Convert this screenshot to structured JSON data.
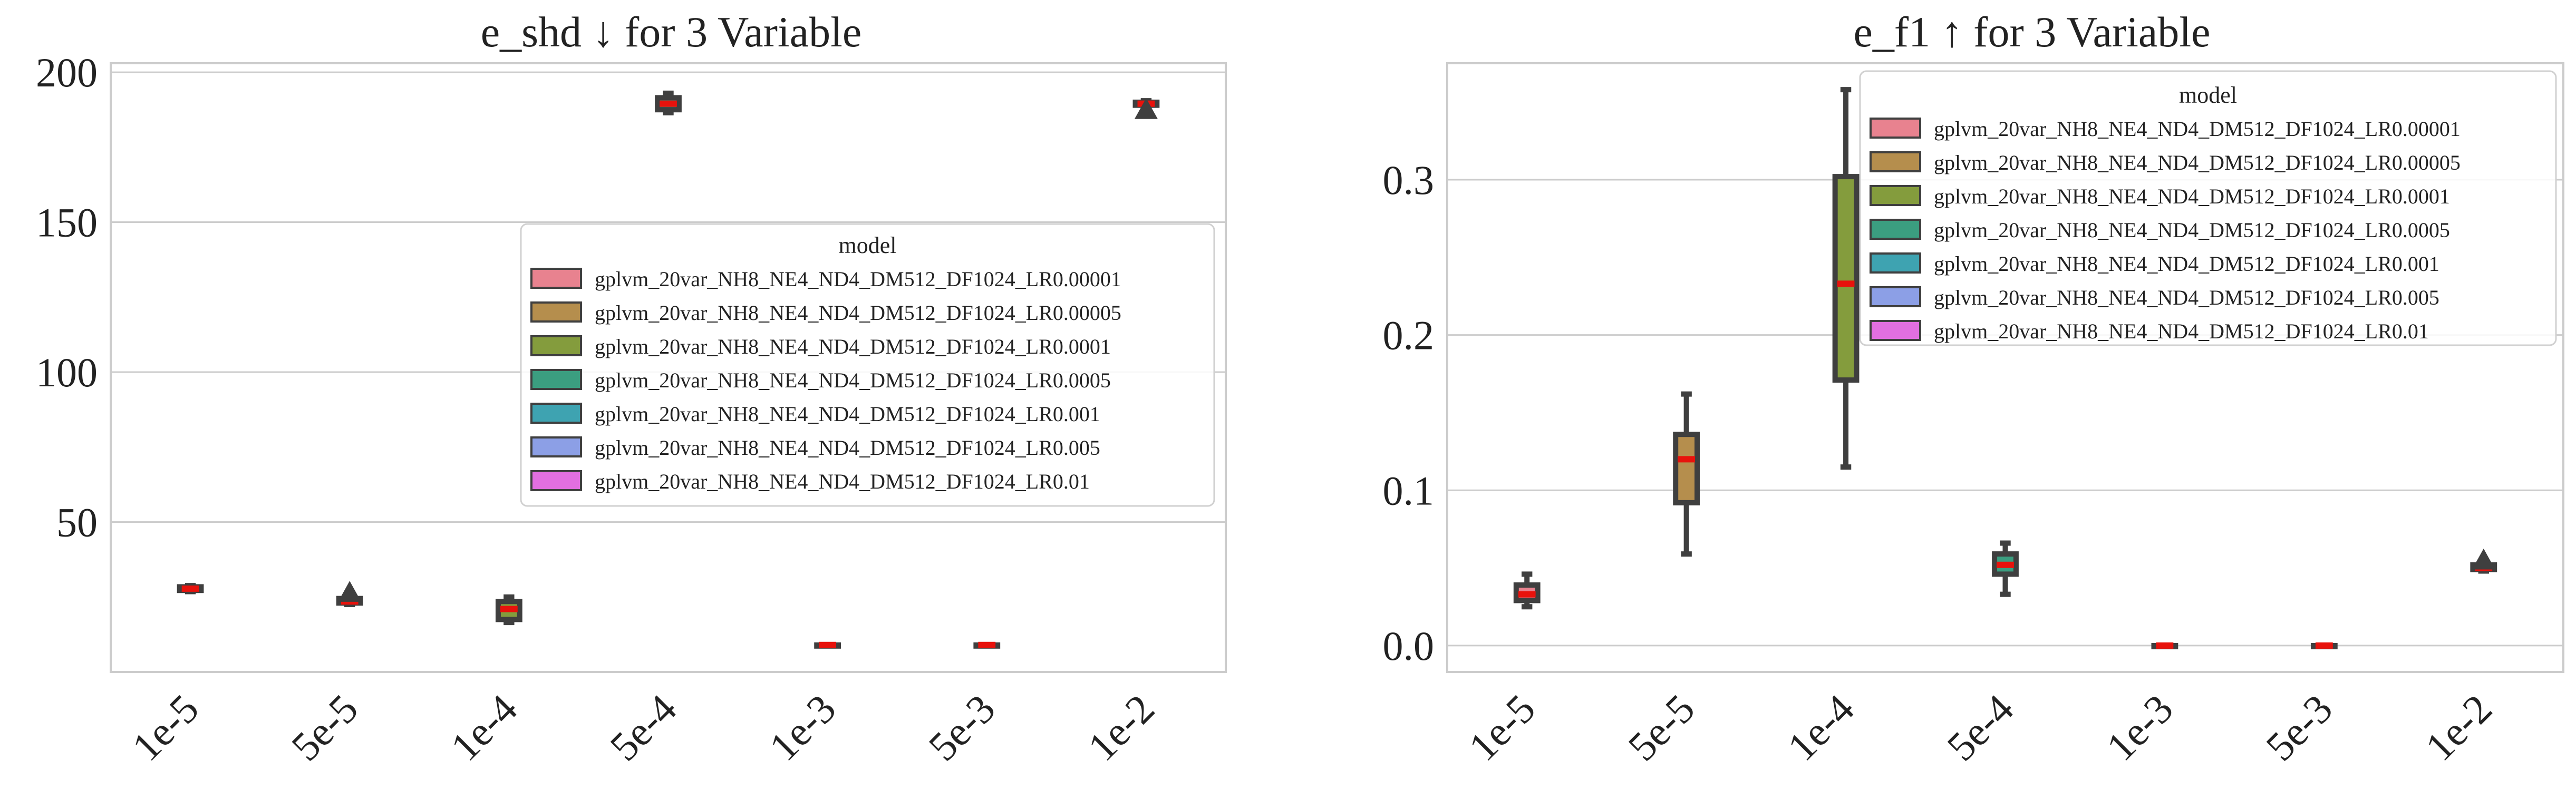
{
  "chart_data": [
    {
      "type": "box",
      "title": "e_shd ↓ for 3 Variable",
      "xlabel": "",
      "ylabel": "",
      "categories": [
        "1e-5",
        "5e-5",
        "1e-4",
        "5e-4",
        "1e-3",
        "5e-3",
        "1e-2"
      ],
      "ylim": [
        0,
        203
      ],
      "yticks": [
        50,
        100,
        150,
        200
      ],
      "grid": "horizontal",
      "legend_position": "center-right",
      "boxes": [
        {
          "category": "1e-5",
          "series": 0,
          "whisker_low": 26.8,
          "q1": 27.2,
          "median": 27.8,
          "q3": 28.4,
          "whisker_high": 28.8
        },
        {
          "category": "5e-5",
          "series": 1,
          "whisker_low": 22.5,
          "q1": 23,
          "median": 23.5,
          "q3": 24.5,
          "whisker_high": 25,
          "fliers": [
            26.5
          ]
        },
        {
          "category": "1e-4",
          "series": 2,
          "whisker_low": 16.5,
          "q1": 17.5,
          "median": 21,
          "q3": 23.5,
          "whisker_high": 25
        },
        {
          "category": "5e-4",
          "series": 3,
          "whisker_low": 186.5,
          "q1": 187.5,
          "median": 189.5,
          "q3": 191.5,
          "whisker_high": 193
        },
        {
          "category": "1e-3",
          "series": 4,
          "whisker_low": 9,
          "q1": 9,
          "median": 9,
          "q3": 9,
          "whisker_high": 9
        },
        {
          "category": "5e-3",
          "series": 5,
          "whisker_low": 9,
          "q1": 9,
          "median": 9,
          "q3": 9,
          "whisker_high": 9
        },
        {
          "category": "1e-2",
          "series": 6,
          "whisker_low": 189,
          "q1": 189,
          "median": 189.5,
          "q3": 190,
          "whisker_high": 190.5,
          "fliers": [
            187.5
          ]
        }
      ]
    },
    {
      "type": "box",
      "title": "e_f1 ↑ for 3 Variable",
      "xlabel": "",
      "ylabel": "",
      "categories": [
        "1e-5",
        "5e-5",
        "1e-4",
        "5e-4",
        "1e-3",
        "5e-3",
        "1e-2"
      ],
      "ylim": [
        -0.017,
        0.375
      ],
      "yticks": [
        0.0,
        0.1,
        0.2,
        0.3
      ],
      "ytick_labels": [
        "0.0",
        "0.1",
        "0.2",
        "0.3"
      ],
      "grid": "horizontal",
      "legend_position": "top-right",
      "boxes": [
        {
          "category": "1e-5",
          "series": 0,
          "whisker_low": 0.025,
          "q1": 0.029,
          "median": 0.033,
          "q3": 0.039,
          "whisker_high": 0.046
        },
        {
          "category": "5e-5",
          "series": 1,
          "whisker_low": 0.059,
          "q1": 0.092,
          "median": 0.12,
          "q3": 0.136,
          "whisker_high": 0.162
        },
        {
          "category": "1e-4",
          "series": 2,
          "whisker_low": 0.115,
          "q1": 0.171,
          "median": 0.233,
          "q3": 0.302,
          "whisker_high": 0.358
        },
        {
          "category": "5e-4",
          "series": 3,
          "whisker_low": 0.033,
          "q1": 0.046,
          "median": 0.052,
          "q3": 0.059,
          "whisker_high": 0.066
        },
        {
          "category": "1e-3",
          "series": 4,
          "whisker_low": 0.0,
          "q1": 0.0,
          "median": 0.0,
          "q3": 0.0,
          "whisker_high": 0.0
        },
        {
          "category": "5e-3",
          "series": 5,
          "whisker_low": 0.0,
          "q1": 0.0,
          "median": 0.0,
          "q3": 0.0,
          "whisker_high": 0.0
        },
        {
          "category": "1e-2",
          "series": 6,
          "whisker_low": 0.048,
          "q1": 0.049,
          "median": 0.05,
          "q3": 0.052,
          "whisker_high": 0.053,
          "fliers": [
            0.055
          ]
        }
      ]
    }
  ],
  "legend": {
    "title": "model",
    "items": [
      {
        "label": "gplvm_20var_NH8_NE4_ND4_DM512_DF1024_LR0.00001",
        "color": "#e8828f"
      },
      {
        "label": "gplvm_20var_NH8_NE4_ND4_DM512_DF1024_LR0.00005",
        "color": "#b58e4d"
      },
      {
        "label": "gplvm_20var_NH8_NE4_ND4_DM512_DF1024_LR0.0001",
        "color": "#849c3d"
      },
      {
        "label": "gplvm_20var_NH8_NE4_ND4_DM512_DF1024_LR0.0005",
        "color": "#3b9e80"
      },
      {
        "label": "gplvm_20var_NH8_NE4_ND4_DM512_DF1024_LR0.001",
        "color": "#3ea3b1"
      },
      {
        "label": "gplvm_20var_NH8_NE4_ND4_DM512_DF1024_LR0.005",
        "color": "#8c9fe6"
      },
      {
        "label": "gplvm_20var_NH8_NE4_ND4_DM512_DF1024_LR0.01",
        "color": "#e26fe0"
      }
    ]
  },
  "colors": {
    "median_line": "#e8120c",
    "box_edge": "#3f3f3f",
    "grid": "#cccccc",
    "axis_frame": "#cccccc"
  }
}
